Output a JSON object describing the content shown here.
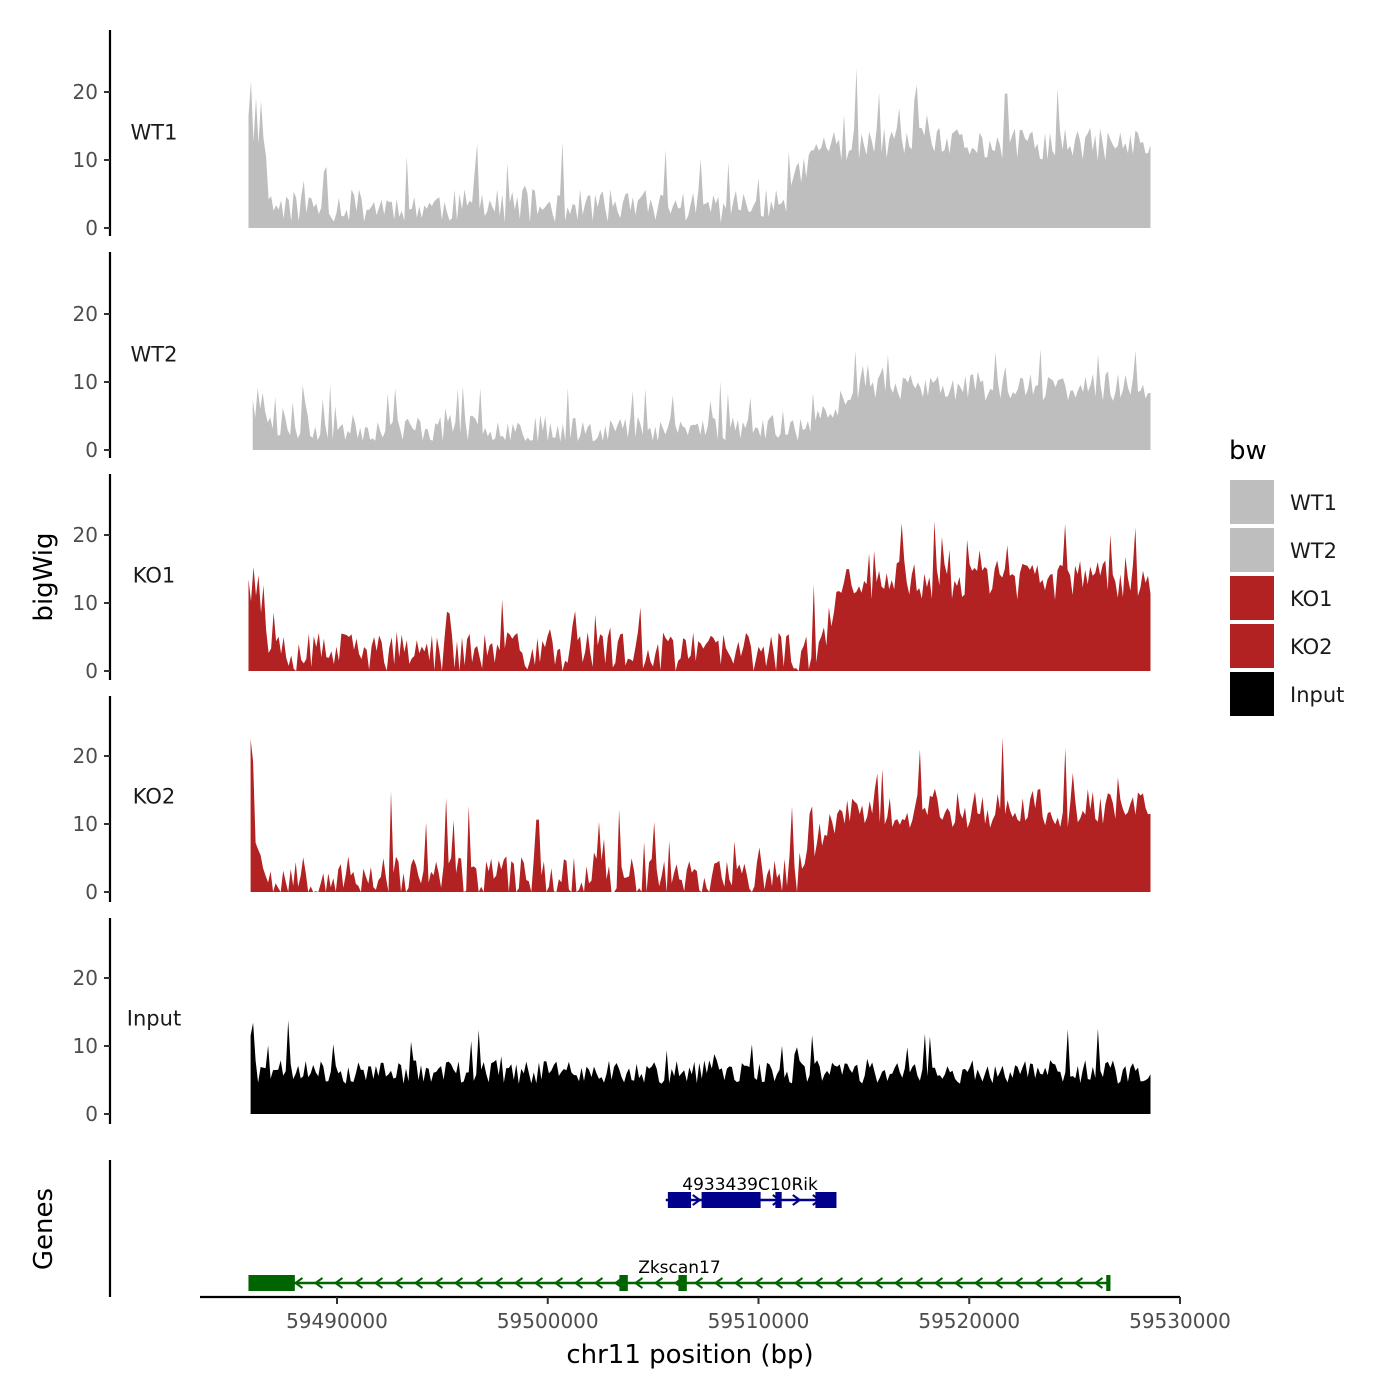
{
  "chart_data": {
    "type": "area",
    "title": "",
    "ylabel": "bigWig",
    "xlabel": "chr11 position (bp)",
    "ylim": [
      0,
      28
    ],
    "y_ticks": [
      0,
      10,
      20
    ],
    "x_range": [
      59483500,
      59530000
    ],
    "x_ticks": [
      59490000,
      59500000,
      59510000,
      59520000,
      59530000
    ],
    "x_tick_labels": [
      "59490000",
      "59500000",
      "59510000",
      "59520000",
      "59530000"
    ],
    "legend": {
      "title": "bw",
      "position": "right",
      "entries": [
        {
          "label": "WT1",
          "color": "#BEBEBE"
        },
        {
          "label": "WT2",
          "color": "#BEBEBE"
        },
        {
          "label": "KO1",
          "color": "#B22222"
        },
        {
          "label": "KO2",
          "color": "#B22222"
        },
        {
          "label": "Input",
          "color": "#000000"
        }
      ]
    },
    "series": [
      {
        "name": "WT1",
        "color": "#BEBEBE",
        "start": 59485800,
        "end": 59528600,
        "baseline": 3,
        "late_level": 12,
        "late_start": 59511000,
        "head": [
          17,
          22,
          13,
          20,
          12,
          18,
          14,
          10,
          5
        ],
        "amplitude": 5,
        "seed": 11
      },
      {
        "name": "WT2",
        "color": "#BEBEBE",
        "start": 59486000,
        "end": 59528600,
        "baseline": 3,
        "late_level": 9,
        "late_start": 59512500,
        "head": [
          8,
          5,
          9,
          6,
          8,
          5
        ],
        "amplitude": 4,
        "seed": 23
      },
      {
        "name": "KO1",
        "color": "#B22222",
        "start": 59485800,
        "end": 59528600,
        "baseline": 2.5,
        "late_level": 13,
        "late_start": 59512500,
        "head": [
          14,
          10,
          16,
          12,
          15,
          9,
          13,
          6,
          3
        ],
        "amplitude": 6,
        "seed": 37
      },
      {
        "name": "KO2",
        "color": "#B22222",
        "start": 59485900,
        "end": 59528600,
        "baseline": 2,
        "late_level": 12,
        "late_start": 59512000,
        "head": [
          23,
          20,
          8,
          6,
          5,
          4,
          3,
          2
        ],
        "amplitude": 6,
        "seed": 53
      },
      {
        "name": "Input",
        "color": "#000000",
        "start": 59485900,
        "end": 59528600,
        "baseline": 6,
        "late_level": 6,
        "late_start": 59528600,
        "head": [
          12,
          13,
          8,
          5
        ],
        "amplitude": 3.5,
        "seed": 71
      }
    ],
    "genes_track": {
      "label": "Genes",
      "genes": [
        {
          "name": "4933439C10Rik",
          "color": "#00008B",
          "strand": "+",
          "start": 59505600,
          "end": 59513600,
          "exons": [
            [
              59505700,
              59506800
            ],
            [
              59507300,
              59510100
            ],
            [
              59510800,
              59511100
            ],
            [
              59512700,
              59513700
            ]
          ]
        },
        {
          "name": "Zkscan17",
          "color": "#006400",
          "strand": "-",
          "start": 59485800,
          "end": 59526700,
          "exons": [
            [
              59485800,
              59488000
            ],
            [
              59503400,
              59503800
            ],
            [
              59506200,
              59506600
            ],
            [
              59526500,
              59526700
            ]
          ]
        }
      ]
    }
  }
}
